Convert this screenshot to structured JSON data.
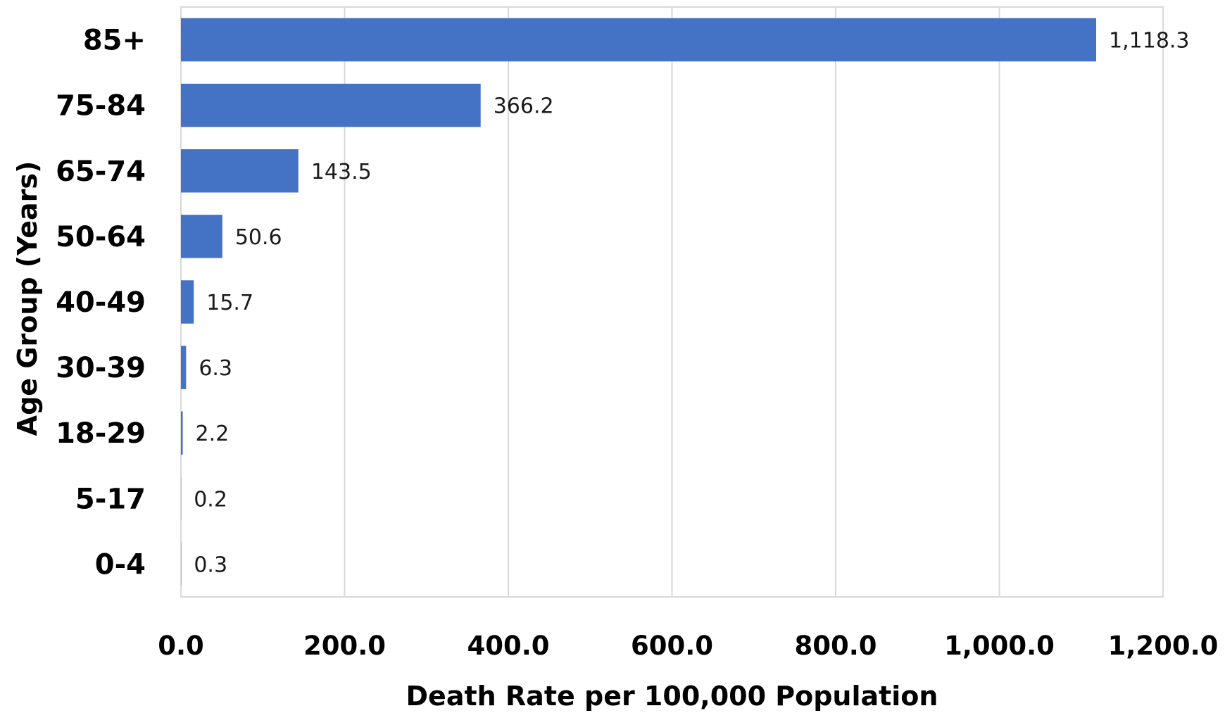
{
  "chart_data": {
    "type": "bar",
    "orientation": "horizontal",
    "categories": [
      "0-4",
      "5-17",
      "18-29",
      "30-39",
      "40-49",
      "50-64",
      "65-74",
      "75-84",
      "85+"
    ],
    "values": [
      0.3,
      0.2,
      2.2,
      6.3,
      15.7,
      50.6,
      143.5,
      366.2,
      1118.3
    ],
    "data_labels": [
      "0.3",
      "0.2",
      "2.2",
      "6.3",
      "15.7",
      "50.6",
      "143.5",
      "366.2",
      "1,118.3"
    ],
    "xlabel": "Death Rate per 100,000 Population",
    "ylabel": "Age Group (Years)",
    "xlim": [
      0,
      1200
    ],
    "xticks": [
      0,
      200,
      400,
      600,
      800,
      1000,
      1200
    ],
    "xtick_labels": [
      "0.0",
      "200.0",
      "400.0",
      "600.0",
      "800.0",
      "1,000.0",
      "1,200.0"
    ],
    "grid": "vertical",
    "legend": "none",
    "colors": {
      "bar": "#4472C4",
      "grid": "#d9d9d9",
      "frame": "#d9d9d9"
    }
  }
}
